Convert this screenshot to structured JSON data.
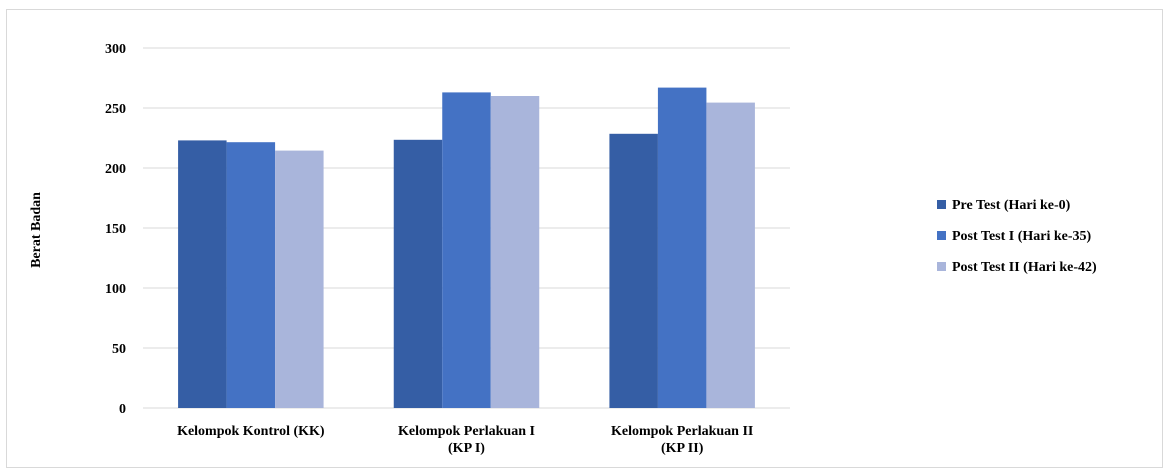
{
  "chart_data": {
    "type": "bar",
    "ylabel": "Berat Badan",
    "xlabel": "",
    "ylim": [
      0,
      300
    ],
    "yticks": [
      0,
      50,
      100,
      150,
      200,
      250,
      300
    ],
    "categories": [
      [
        "Kelompok Kontrol (KK)"
      ],
      [
        "Kelompok Perlakuan I",
        "(KP I)"
      ],
      [
        "Kelompok Perlakuan II",
        "(KP II)"
      ]
    ],
    "series": [
      {
        "name": "Pre Test (Hari ke-0)",
        "color": "#355ea5",
        "values": [
          223,
          223.5,
          228.5
        ]
      },
      {
        "name": "Post Test I (Hari ke-35)",
        "color": "#4472c4",
        "values": [
          221.5,
          263,
          267
        ]
      },
      {
        "name": "Post Test II (Hari ke-42)",
        "color": "#a9b5db",
        "values": [
          214.5,
          260,
          254.5
        ]
      }
    ],
    "grid": true,
    "legend": "right"
  }
}
